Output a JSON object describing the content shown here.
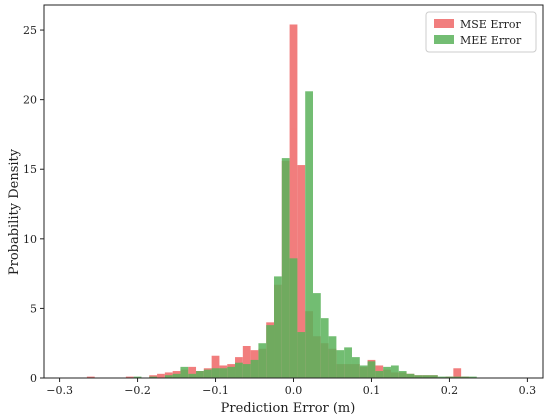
{
  "chart_data": {
    "type": "bar",
    "title": "",
    "xlabel": "Prediction Error (m)",
    "ylabel": "Probability Density",
    "xlim": [
      -0.32,
      0.32
    ],
    "ylim": [
      0,
      26.8
    ],
    "xticks": [
      -0.3,
      -0.2,
      -0.1,
      0.0,
      0.1,
      0.2,
      0.3
    ],
    "xtick_labels": [
      "−0.3",
      "−0.2",
      "−0.1",
      "0.0",
      "0.1",
      "0.2",
      "0.3"
    ],
    "yticks": [
      0,
      5,
      10,
      15,
      20,
      25
    ],
    "ytick_labels": [
      "0",
      "5",
      "10",
      "15",
      "20",
      "25"
    ],
    "bin_width": 0.01,
    "grid": false,
    "legend_position": "top-right",
    "series": [
      {
        "name": "MSE Error",
        "color": "#f07070",
        "opacity": 0.9,
        "bins": [
          [
            -0.26,
            0.1
          ],
          [
            -0.21,
            0.1
          ],
          [
            -0.18,
            0.2
          ],
          [
            -0.17,
            0.3
          ],
          [
            -0.16,
            0.4
          ],
          [
            -0.15,
            0.5
          ],
          [
            -0.14,
            0.6
          ],
          [
            -0.13,
            0.8
          ],
          [
            -0.12,
            0.5
          ],
          [
            -0.11,
            0.7
          ],
          [
            -0.1,
            1.6
          ],
          [
            -0.09,
            0.9
          ],
          [
            -0.08,
            1.0
          ],
          [
            -0.07,
            1.5
          ],
          [
            -0.06,
            2.3
          ],
          [
            -0.05,
            2.0
          ],
          [
            -0.04,
            2.1
          ],
          [
            -0.03,
            4.0
          ],
          [
            -0.02,
            6.7
          ],
          [
            -0.01,
            15.6
          ],
          [
            0.0,
            25.4
          ],
          [
            0.01,
            15.3
          ],
          [
            0.02,
            4.8
          ],
          [
            0.03,
            3.0
          ],
          [
            0.04,
            2.5
          ],
          [
            0.05,
            2.1
          ],
          [
            0.06,
            1.0
          ],
          [
            0.07,
            1.0
          ],
          [
            0.08,
            1.0
          ],
          [
            0.09,
            0.8
          ],
          [
            0.1,
            1.3
          ],
          [
            0.11,
            0.9
          ],
          [
            0.12,
            0.6
          ],
          [
            0.13,
            0.4
          ],
          [
            0.14,
            0.4
          ],
          [
            0.15,
            0.3
          ],
          [
            0.16,
            0.2
          ],
          [
            0.17,
            0.2
          ],
          [
            0.18,
            0.2
          ],
          [
            0.2,
            0.1
          ],
          [
            0.21,
            0.7
          ],
          [
            0.22,
            0.1
          ]
        ]
      },
      {
        "name": "MEE Error",
        "color": "#5ab25a",
        "opacity": 0.85,
        "bins": [
          [
            -0.2,
            0.1
          ],
          [
            -0.18,
            0.1
          ],
          [
            -0.16,
            0.2
          ],
          [
            -0.15,
            0.3
          ],
          [
            -0.14,
            0.8
          ],
          [
            -0.13,
            0.3
          ],
          [
            -0.12,
            0.5
          ],
          [
            -0.11,
            0.6
          ],
          [
            -0.1,
            0.7
          ],
          [
            -0.09,
            0.7
          ],
          [
            -0.08,
            0.8
          ],
          [
            -0.07,
            1.1
          ],
          [
            -0.06,
            1.0
          ],
          [
            -0.05,
            1.3
          ],
          [
            -0.04,
            2.5
          ],
          [
            -0.03,
            3.8
          ],
          [
            -0.02,
            7.3
          ],
          [
            -0.01,
            15.8
          ],
          [
            0.0,
            8.6
          ],
          [
            0.01,
            3.3
          ],
          [
            0.02,
            20.6
          ],
          [
            0.03,
            6.1
          ],
          [
            0.04,
            4.3
          ],
          [
            0.05,
            3.0
          ],
          [
            0.06,
            2.0
          ],
          [
            0.07,
            2.2
          ],
          [
            0.08,
            1.5
          ],
          [
            0.09,
            0.9
          ],
          [
            0.1,
            1.2
          ],
          [
            0.11,
            0.5
          ],
          [
            0.12,
            0.8
          ],
          [
            0.13,
            0.9
          ],
          [
            0.14,
            0.5
          ],
          [
            0.15,
            0.3
          ],
          [
            0.16,
            0.2
          ],
          [
            0.17,
            0.2
          ],
          [
            0.18,
            0.2
          ],
          [
            0.19,
            0.1
          ],
          [
            0.2,
            0.1
          ],
          [
            0.21,
            0.1
          ],
          [
            0.22,
            0.1
          ],
          [
            0.23,
            0.1
          ]
        ]
      }
    ]
  }
}
